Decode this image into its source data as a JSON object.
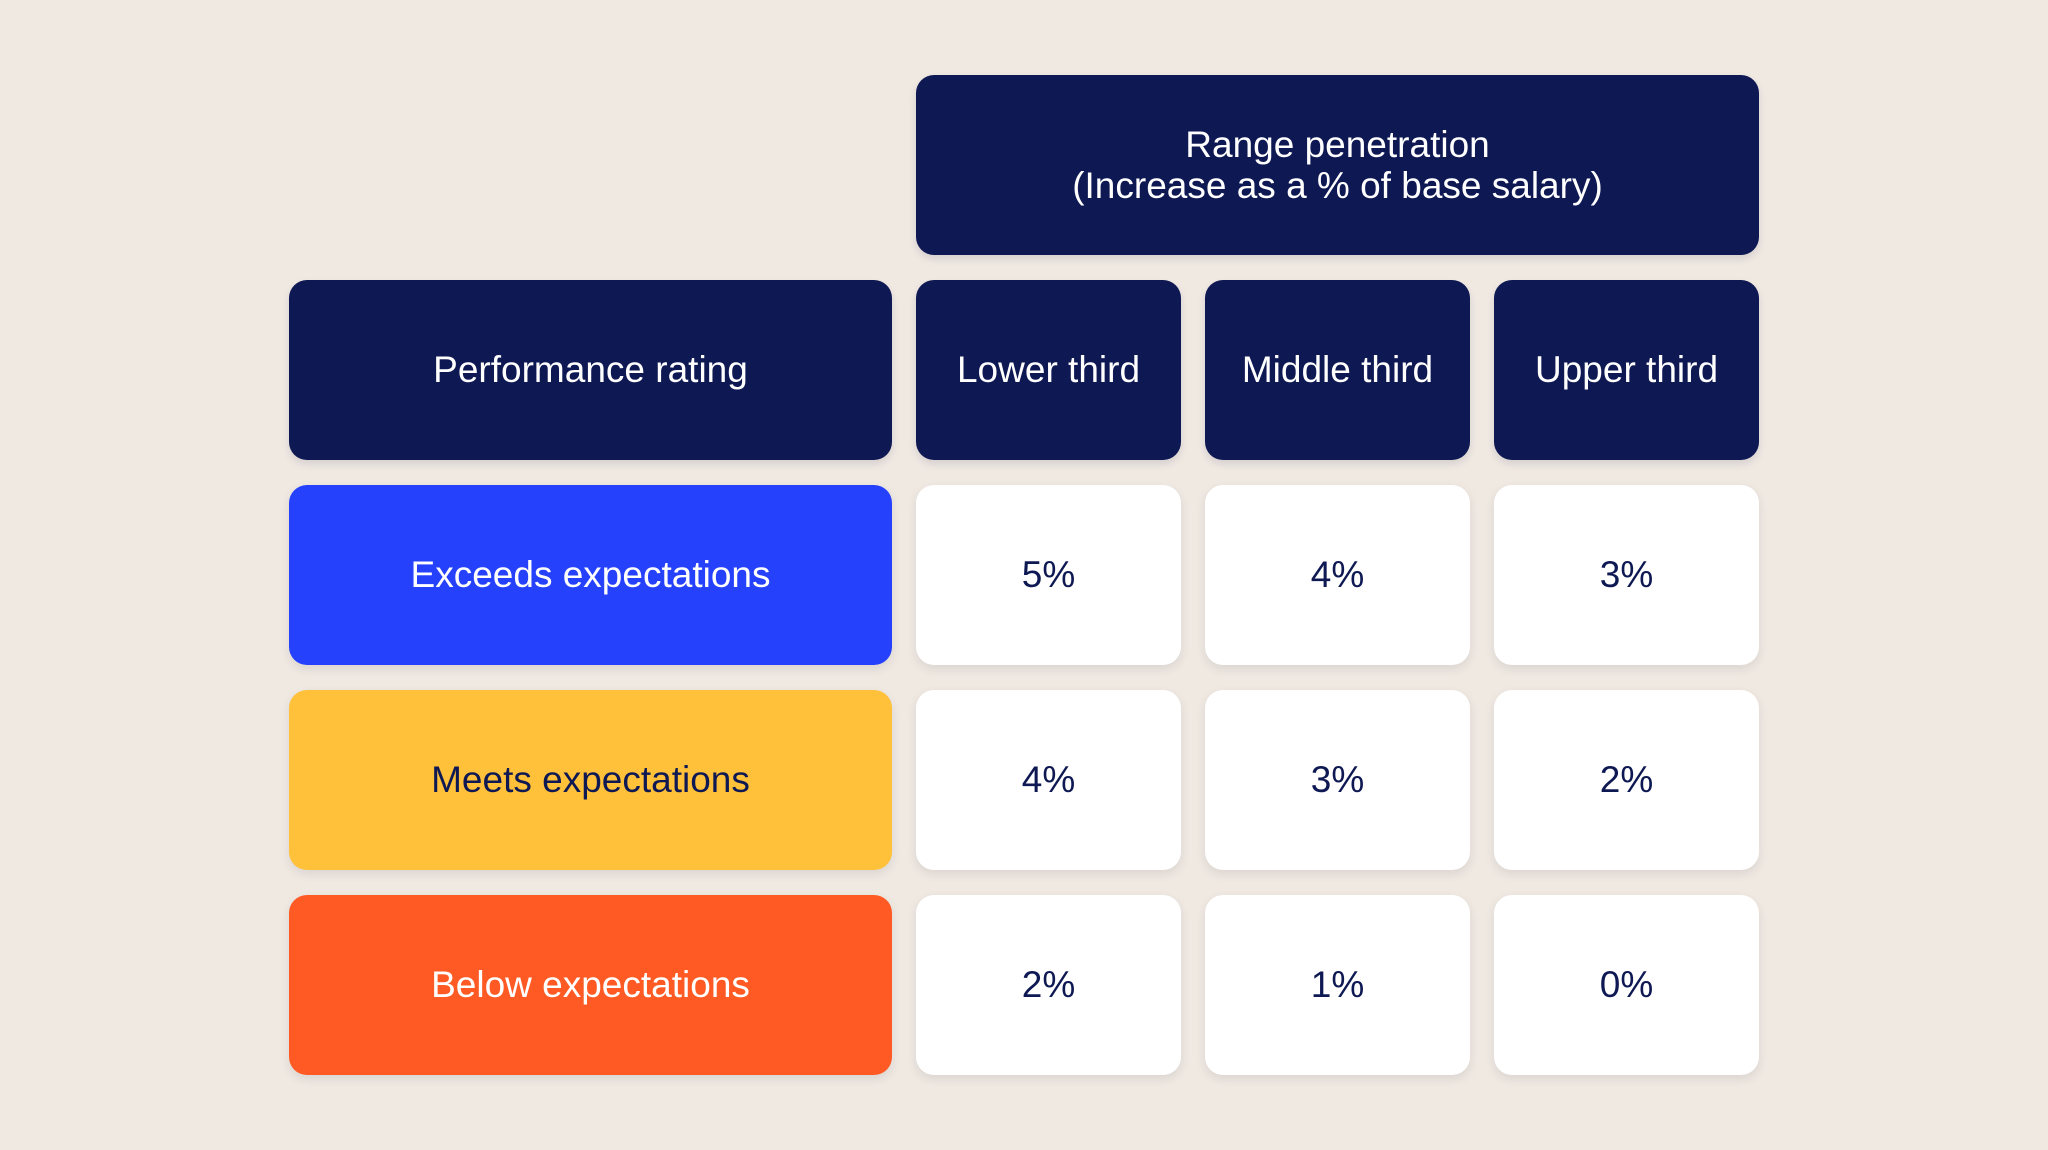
{
  "table": {
    "top_header": {
      "line1": "Range penetration",
      "line2": "(Increase as a % of base salary)"
    },
    "row_header": "Performance rating",
    "columns": [
      "Lower third",
      "Middle third",
      "Upper third"
    ],
    "rows": [
      {
        "label": "Exceeds expectations",
        "color": "#2541fc",
        "text_color": "#ffffff",
        "values": [
          "5%",
          "4%",
          "3%"
        ]
      },
      {
        "label": "Meets expectations",
        "color": "#ffc03a",
        "text_color": "#0e1852",
        "values": [
          "4%",
          "3%",
          "2%"
        ]
      },
      {
        "label": "Below expectations",
        "color": "#ff5a24",
        "text_color": "#ffffff",
        "values": [
          "2%",
          "1%",
          "0%"
        ]
      }
    ]
  },
  "colors": {
    "background": "#f0e9e2",
    "header": "#0e1852",
    "value_cell": "#ffffff"
  }
}
